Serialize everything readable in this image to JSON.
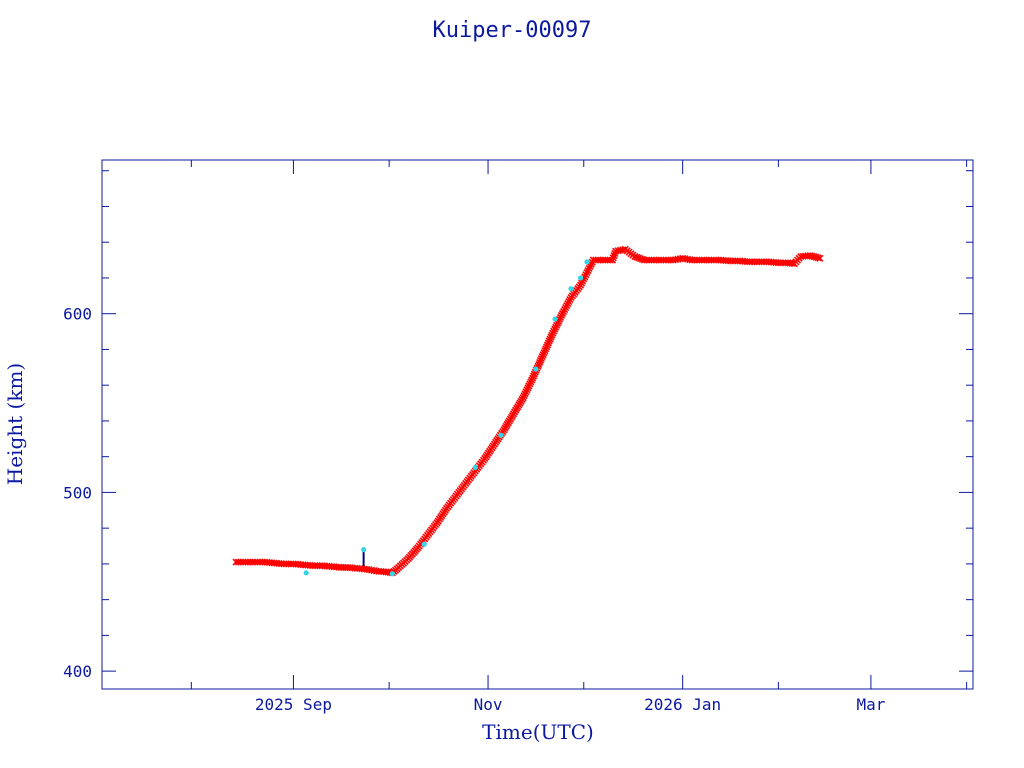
{
  "chart_data": {
    "type": "scatter",
    "title": "Kuiper-00097",
    "xlabel": "Time(UTC)",
    "ylabel": "Height (km)",
    "x_ticks": [
      {
        "date": "2025-09-01",
        "label": "2025 Sep"
      },
      {
        "date": "2025-11-01",
        "label": "Nov"
      },
      {
        "date": "2026-01-01",
        "label": "2026 Jan"
      },
      {
        "date": "2026-03-01",
        "label": "Mar"
      }
    ],
    "y_ticks": [
      400,
      500,
      600
    ],
    "xlim": [
      "2025-07-03",
      "2026-04-02"
    ],
    "ylim": [
      390,
      686
    ],
    "grid": false,
    "colors": {
      "axes": "#0b18a0",
      "series_main": "#ff0000",
      "series_alt": "#33d6e6",
      "marker_line": "#00007a"
    },
    "series": [
      {
        "color": "#ff0000",
        "marker": "x",
        "points": [
          [
            "2025-08-14",
            461
          ],
          [
            "2025-08-17",
            461
          ],
          [
            "2025-08-20",
            461
          ],
          [
            "2025-08-23",
            461
          ],
          [
            "2025-08-26",
            460.5
          ],
          [
            "2025-08-29",
            460
          ],
          [
            "2025-09-01",
            460
          ],
          [
            "2025-09-04",
            459.5
          ],
          [
            "2025-09-07",
            459
          ],
          [
            "2025-09-10",
            459
          ],
          [
            "2025-09-13",
            458.5
          ],
          [
            "2025-09-16",
            458
          ],
          [
            "2025-09-18",
            458
          ],
          [
            "2025-09-21",
            457.5
          ],
          [
            "2025-09-24",
            457
          ],
          [
            "2025-09-27",
            456
          ],
          [
            "2025-09-30",
            455.5
          ],
          [
            "2025-10-02",
            455
          ],
          [
            "2025-10-04",
            458
          ],
          [
            "2025-10-07",
            463
          ],
          [
            "2025-10-10",
            469
          ],
          [
            "2025-10-13",
            476
          ],
          [
            "2025-10-16",
            483
          ],
          [
            "2025-10-19",
            491
          ],
          [
            "2025-10-22",
            498
          ],
          [
            "2025-10-25",
            505
          ],
          [
            "2025-10-28",
            512
          ],
          [
            "2025-10-31",
            519
          ],
          [
            "2025-11-03",
            527
          ],
          [
            "2025-11-06",
            535
          ],
          [
            "2025-11-09",
            544
          ],
          [
            "2025-11-12",
            553
          ],
          [
            "2025-11-15",
            564
          ],
          [
            "2025-11-18",
            576
          ],
          [
            "2025-11-21",
            588
          ],
          [
            "2025-11-24",
            599
          ],
          [
            "2025-11-27",
            609
          ],
          [
            "2025-11-30",
            616
          ],
          [
            "2025-12-02",
            623
          ],
          [
            "2025-12-04",
            630
          ],
          [
            "2025-12-07",
            630
          ],
          [
            "2025-12-10",
            630
          ],
          [
            "2025-12-11",
            635
          ],
          [
            "2025-12-14",
            636
          ],
          [
            "2025-12-17",
            632
          ],
          [
            "2025-12-20",
            630
          ],
          [
            "2025-12-23",
            630
          ],
          [
            "2025-12-26",
            630
          ],
          [
            "2025-12-29",
            630
          ],
          [
            "2026-01-01",
            631
          ],
          [
            "2026-01-04",
            630
          ],
          [
            "2026-01-07",
            630
          ],
          [
            "2026-01-10",
            630
          ],
          [
            "2026-01-13",
            630
          ],
          [
            "2026-01-16",
            629.5
          ],
          [
            "2026-01-19",
            629.5
          ],
          [
            "2026-01-22",
            629
          ],
          [
            "2026-01-25",
            629
          ],
          [
            "2026-01-28",
            629
          ],
          [
            "2026-01-31",
            628.5
          ],
          [
            "2026-02-03",
            628.5
          ],
          [
            "2026-02-05",
            628
          ],
          [
            "2026-02-07",
            632
          ],
          [
            "2026-02-10",
            632.5
          ],
          [
            "2026-02-13",
            631
          ]
        ]
      },
      {
        "color": "#33d6e6",
        "marker": "dot",
        "points": [
          [
            "2025-09-05",
            455
          ],
          [
            "2025-09-23",
            468
          ],
          [
            "2025-10-02",
            454.5
          ],
          [
            "2025-10-12",
            471
          ],
          [
            "2025-10-28",
            514
          ],
          [
            "2025-11-05",
            532
          ],
          [
            "2025-11-16",
            569
          ],
          [
            "2025-11-22",
            597
          ],
          [
            "2025-11-27",
            614
          ],
          [
            "2025-11-30",
            620
          ],
          [
            "2025-12-02",
            629
          ]
        ]
      }
    ]
  }
}
